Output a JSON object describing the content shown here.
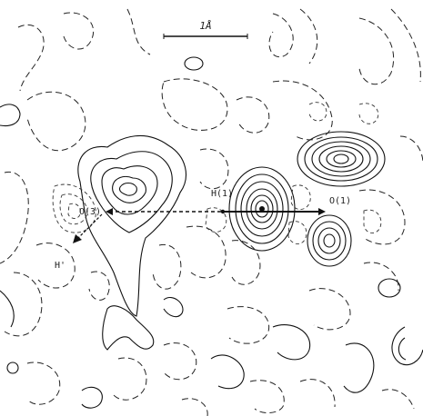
{
  "figure": {
    "scale_bar_label": "1Å",
    "atoms": {
      "o3": "O(3)",
      "h1": "H(1)",
      "o1": "O(1)",
      "hprime": "H'"
    },
    "colors": {
      "line": "#111111",
      "background": "#ffffff"
    }
  }
}
